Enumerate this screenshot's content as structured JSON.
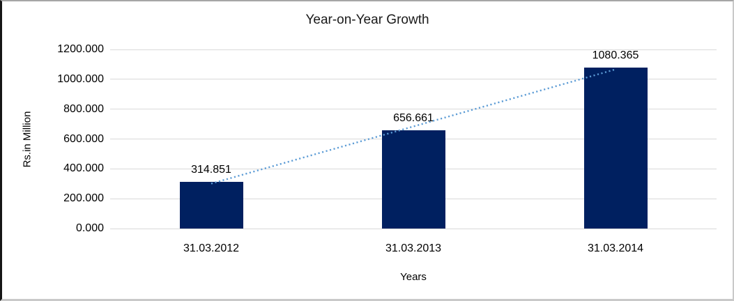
{
  "chart_data": {
    "type": "bar",
    "title": "Year-on-Year Growth",
    "categories": [
      "31.03.2012",
      "31.03.2013",
      "31.03.2014"
    ],
    "values": [
      314.851,
      656.661,
      1080.365
    ],
    "data_labels": [
      "314.851",
      "656.661",
      "1080.365"
    ],
    "xlabel": "Years",
    "ylabel": "Rs.in Million",
    "ylim": [
      0,
      1200
    ],
    "ytick_step": 200,
    "ytick_labels": [
      "0.000",
      "200.000",
      "400.000",
      "600.000",
      "800.000",
      "1000.000",
      "1200.000"
    ],
    "grid": true,
    "legend": "none",
    "bar_color": "#002060",
    "gridline_color": "#d9d9d9",
    "text_color": "#000000",
    "trendline": {
      "type": "linear",
      "style": "dotted",
      "color": "#5b9bd5"
    }
  }
}
